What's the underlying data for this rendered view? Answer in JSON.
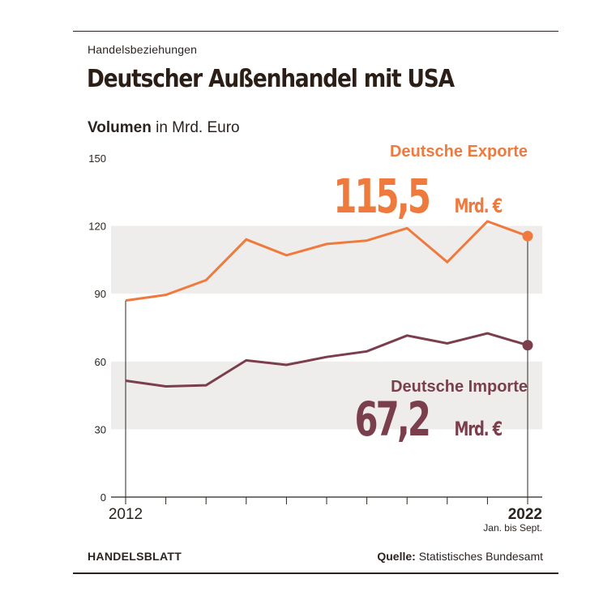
{
  "header": {
    "kicker": "Handelsbeziehungen",
    "title": "Deutscher Außenhandel mit USA"
  },
  "units": {
    "bold": "Volumen",
    "rest": "in Mrd. Euro"
  },
  "footer": {
    "brand": "HANDELSBLATT",
    "source_label": "Quelle:",
    "source_text": "Statistisches Bundesamt"
  },
  "colors": {
    "exports": "#ee7a3e",
    "imports": "#7a3e4c",
    "band": "#efedeb",
    "axis": "#2b2420"
  },
  "chart_data": {
    "type": "line",
    "x": [
      2012,
      2013,
      2014,
      2015,
      2016,
      2017,
      2018,
      2019,
      2020,
      2021,
      2022
    ],
    "x_tick_labels": [
      {
        "x": 2012,
        "label": "2012",
        "sub": "",
        "bold": false
      },
      {
        "x": 2022,
        "label": "2022",
        "sub": "Jan. bis Sept.",
        "bold": true
      }
    ],
    "ylim": [
      0,
      150
    ],
    "yticks": [
      0,
      30,
      60,
      90,
      120,
      150
    ],
    "grid": "alternating bands",
    "series": [
      {
        "name": "Deutsche Exporte",
        "color_key": "exports",
        "values": [
          87,
          89.5,
          96,
          114,
          107,
          112,
          113.5,
          119,
          104,
          122,
          115.5
        ],
        "end_value_label": "115,5",
        "end_unit_label": "Mrd. €"
      },
      {
        "name": "Deutsche Importe",
        "color_key": "imports",
        "values": [
          51.5,
          49,
          49.5,
          60.5,
          58.5,
          62,
          64.5,
          71.5,
          68,
          72.5,
          67.2
        ],
        "end_value_label": "67,2",
        "end_unit_label": "Mrd. €"
      }
    ]
  }
}
